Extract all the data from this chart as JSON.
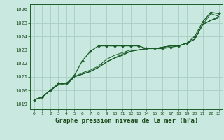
{
  "title": "Graphe pression niveau de la mer (hPa)",
  "hours": [
    0,
    1,
    2,
    3,
    4,
    5,
    6,
    7,
    8,
    9,
    10,
    11,
    12,
    13,
    14,
    15,
    16,
    17,
    18,
    19,
    20,
    21,
    22,
    23
  ],
  "ylim": [
    1018.6,
    1026.4
  ],
  "yticks": [
    1019,
    1020,
    1021,
    1022,
    1023,
    1024,
    1025,
    1026
  ],
  "xlim": [
    -0.5,
    23.5
  ],
  "bg_color": "#c8e8e0",
  "grid_color": "#a8ccc4",
  "dark_green": "#1a5c28",
  "series_main": [
    1019.3,
    1019.5,
    1020.0,
    1020.5,
    1020.5,
    1021.1,
    1022.2,
    1022.9,
    1023.3,
    1023.3,
    1023.3,
    1023.3,
    1023.3,
    1023.3,
    1023.1,
    1023.1,
    1023.1,
    1023.2,
    1023.3,
    1023.5,
    1024.0,
    1025.1,
    1025.8,
    1025.7
  ],
  "series_2": [
    1019.3,
    1019.5,
    1020.0,
    1020.4,
    1020.5,
    1021.0,
    1021.3,
    1021.5,
    1021.8,
    1022.3,
    1022.6,
    1022.8,
    1023.0,
    1023.0,
    1023.1,
    1023.1,
    1023.2,
    1023.3,
    1023.3,
    1023.5,
    1023.8,
    1024.9,
    1025.2,
    1025.4
  ],
  "series_3": [
    1019.3,
    1019.5,
    1020.0,
    1020.4,
    1020.4,
    1021.0,
    1021.2,
    1021.4,
    1021.7,
    1022.1,
    1022.4,
    1022.7,
    1022.9,
    1023.0,
    1023.1,
    1023.1,
    1023.2,
    1023.3,
    1023.3,
    1023.5,
    1023.8,
    1024.9,
    1025.2,
    1025.4
  ],
  "series_4": [
    1019.3,
    1019.5,
    1020.0,
    1020.4,
    1020.4,
    1021.0,
    1021.2,
    1021.4,
    1021.7,
    1022.1,
    1022.4,
    1022.6,
    1022.9,
    1023.0,
    1023.1,
    1023.1,
    1023.2,
    1023.3,
    1023.3,
    1023.5,
    1023.8,
    1024.9,
    1025.2,
    1025.5
  ],
  "series_5": [
    1019.3,
    1019.5,
    1020.0,
    1020.4,
    1020.4,
    1021.0,
    1021.2,
    1021.4,
    1021.7,
    1022.1,
    1022.4,
    1022.6,
    1022.9,
    1023.0,
    1023.1,
    1023.1,
    1023.2,
    1023.3,
    1023.3,
    1023.5,
    1023.8,
    1024.9,
    1025.7,
    1025.5
  ]
}
